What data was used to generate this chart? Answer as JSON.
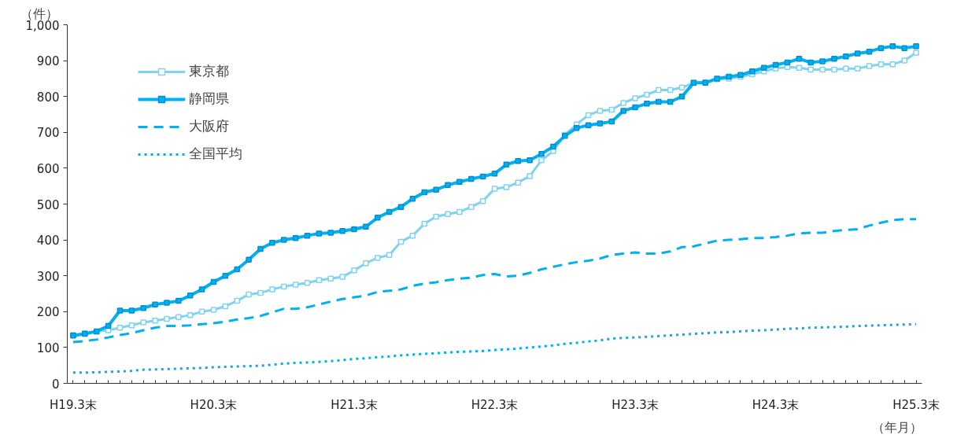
{
  "chart_data": {
    "type": "line",
    "ylabel": "（件）",
    "xlabel": "（年月）",
    "categories": [
      "H19.3末",
      null,
      null,
      null,
      null,
      null,
      null,
      null,
      null,
      null,
      null,
      null,
      "H20.3末",
      null,
      null,
      null,
      null,
      null,
      null,
      null,
      null,
      null,
      null,
      null,
      "H21.3末",
      null,
      null,
      null,
      null,
      null,
      null,
      null,
      null,
      null,
      null,
      null,
      "H22.3末",
      null,
      null,
      null,
      null,
      null,
      null,
      null,
      null,
      null,
      null,
      null,
      "H23.3末",
      null,
      null,
      null,
      null,
      null,
      null,
      null,
      null,
      null,
      null,
      null,
      "H24.3末",
      null,
      null,
      null,
      null,
      null,
      null,
      null,
      null,
      null,
      null,
      null,
      "H25.3末"
    ],
    "ylim": [
      0,
      1000
    ],
    "yticks": [
      0,
      100,
      200,
      300,
      400,
      500,
      600,
      700,
      800,
      900,
      {
        "value": 1000,
        "label": "1,000"
      }
    ],
    "grid": false,
    "legend": "top left",
    "series": [
      {
        "name": "東京都",
        "color": "#7fd3f0",
        "marker": "square",
        "line_style": "solid",
        "values": [
          135,
          140,
          145,
          148,
          155,
          162,
          170,
          175,
          180,
          185,
          190,
          200,
          205,
          215,
          230,
          248,
          252,
          262,
          270,
          275,
          280,
          288,
          292,
          297,
          315,
          335,
          350,
          358,
          395,
          412,
          445,
          465,
          472,
          478,
          492,
          508,
          543,
          547,
          560,
          578,
          622,
          648,
          693,
          722,
          748,
          760,
          763,
          782,
          795,
          805,
          818,
          818,
          825,
          838,
          840,
          848,
          850,
          855,
          862,
          870,
          878,
          882,
          880,
          875,
          875,
          875,
          878,
          878,
          885,
          890,
          890,
          900,
          922
        ]
      },
      {
        "name": "静岡県",
        "color": "#00b0f0",
        "marker": "square",
        "line_style": "solid",
        "values": [
          133,
          138,
          145,
          160,
          203,
          203,
          210,
          220,
          225,
          230,
          245,
          262,
          283,
          300,
          318,
          345,
          375,
          392,
          400,
          405,
          412,
          418,
          420,
          425,
          430,
          437,
          462,
          478,
          492,
          515,
          533,
          540,
          553,
          562,
          570,
          577,
          585,
          610,
          620,
          622,
          640,
          660,
          690,
          712,
          720,
          725,
          730,
          760,
          770,
          780,
          785,
          785,
          800,
          838,
          838,
          850,
          855,
          860,
          870,
          880,
          888,
          895,
          905,
          895,
          898,
          905,
          912,
          920,
          925,
          935,
          940,
          935,
          940
        ]
      },
      {
        "name": "大阪府",
        "color": "#00b0f0",
        "marker": "none",
        "line_style": "dashed",
        "values": [
          115,
          118,
          122,
          128,
          135,
          140,
          148,
          155,
          160,
          160,
          162,
          165,
          168,
          172,
          178,
          182,
          188,
          198,
          208,
          208,
          212,
          220,
          228,
          235,
          240,
          245,
          255,
          258,
          262,
          272,
          278,
          282,
          288,
          292,
          295,
          302,
          305,
          298,
          300,
          308,
          318,
          325,
          332,
          338,
          342,
          348,
          358,
          362,
          365,
          362,
          362,
          368,
          380,
          382,
          390,
          398,
          400,
          402,
          405,
          405,
          408,
          412,
          418,
          420,
          420,
          425,
          428,
          430,
          440,
          448,
          455,
          458,
          458
        ]
      },
      {
        "name": "全国平均",
        "color": "#00b0f0",
        "marker": "none",
        "line_style": "dotted",
        "values": [
          30,
          30,
          31,
          32,
          33,
          35,
          38,
          39,
          40,
          41,
          42,
          43,
          45,
          46,
          47,
          48,
          49,
          52,
          55,
          57,
          58,
          60,
          62,
          65,
          68,
          70,
          73,
          75,
          78,
          80,
          82,
          84,
          86,
          88,
          89,
          90,
          93,
          95,
          97,
          100,
          103,
          106,
          110,
          113,
          117,
          120,
          125,
          127,
          128,
          130,
          132,
          134,
          136,
          138,
          140,
          142,
          143,
          145,
          147,
          148,
          150,
          152,
          153,
          155,
          156,
          157,
          158,
          160,
          161,
          162,
          163,
          164,
          165
        ]
      }
    ]
  }
}
